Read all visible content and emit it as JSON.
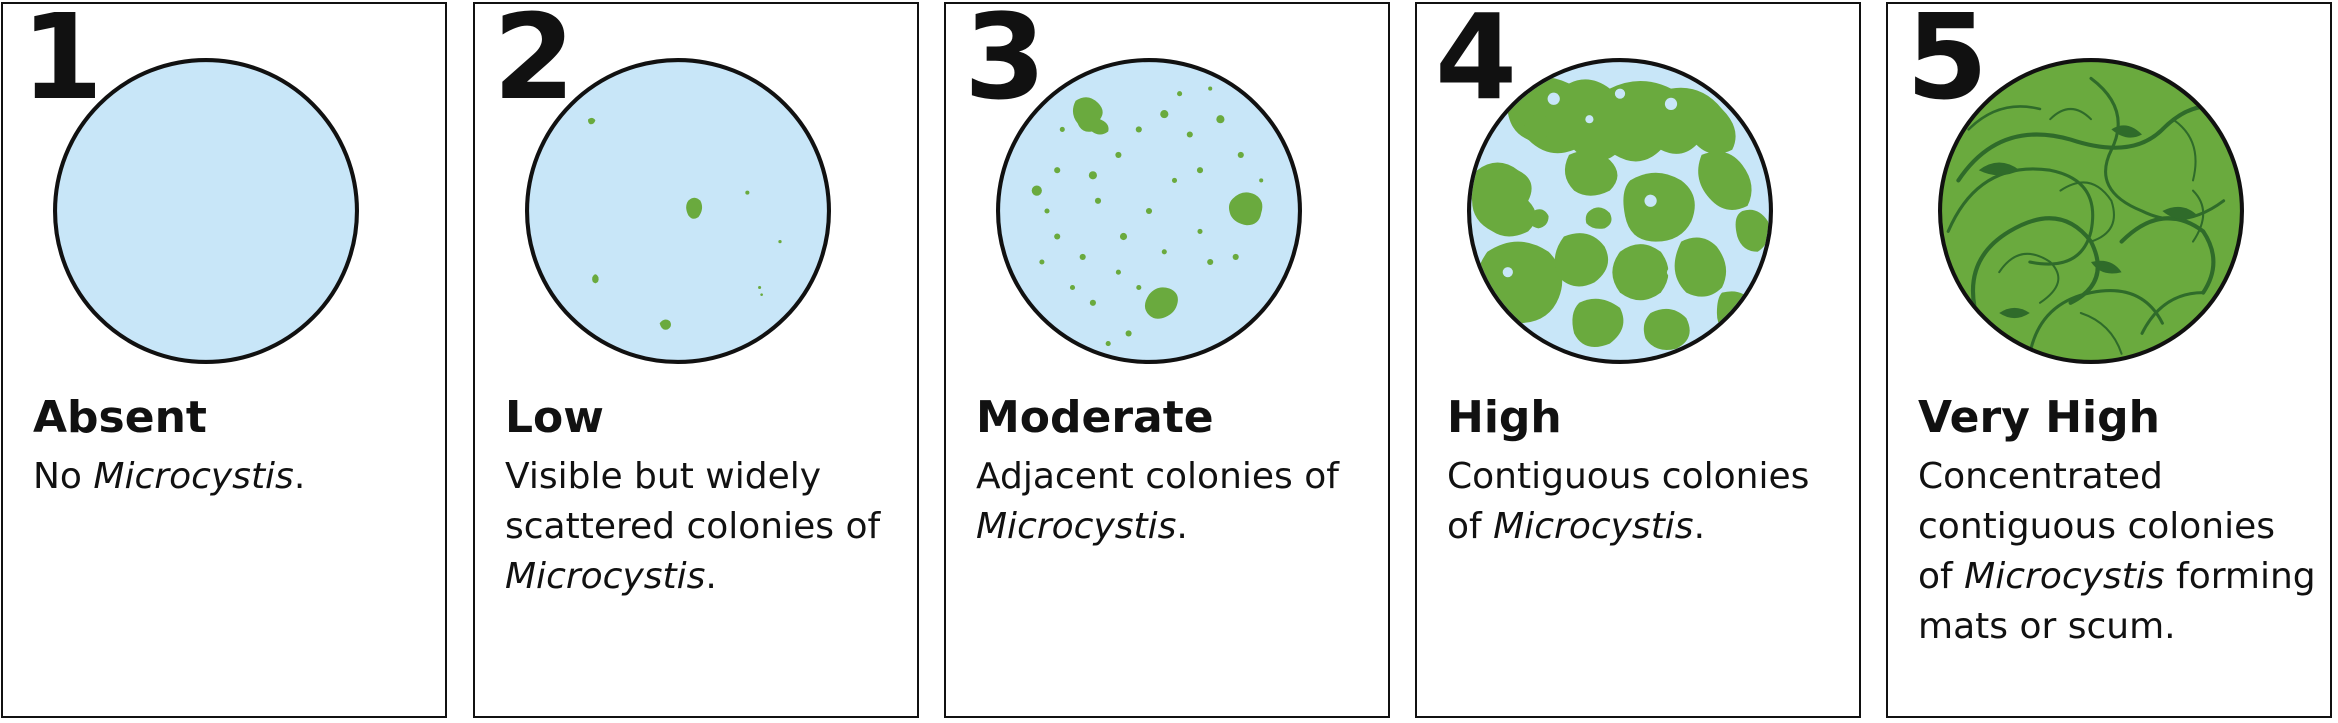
{
  "levels": [
    {
      "number": "1",
      "title": "Absent",
      "desc_before": "No ",
      "desc_italic": "Microcystis",
      "desc_after": "."
    },
    {
      "number": "2",
      "title": "Low",
      "desc_before": "Visible but widely scattered colonies of ",
      "desc_italic": "Microcystis",
      "desc_after": "."
    },
    {
      "number": "3",
      "title": "Moderate",
      "desc_before": "Adjacent colonies of ",
      "desc_italic": "Microcystis",
      "desc_after": "."
    },
    {
      "number": "4",
      "title": "High",
      "desc_before": "Contiguous colonies of ",
      "desc_italic": "Microcystis",
      "desc_after": "."
    },
    {
      "number": "5",
      "title": "Very High",
      "desc_before": "Concentrated contiguous colonies of ",
      "desc_italic": "Microcystis",
      "desc_after": " forming mats or scum."
    }
  ],
  "colors": {
    "water": "#c8e6f8",
    "algae": "#6aaa3e",
    "algae_dark": "#2f6b2a",
    "outline": "#111111"
  }
}
